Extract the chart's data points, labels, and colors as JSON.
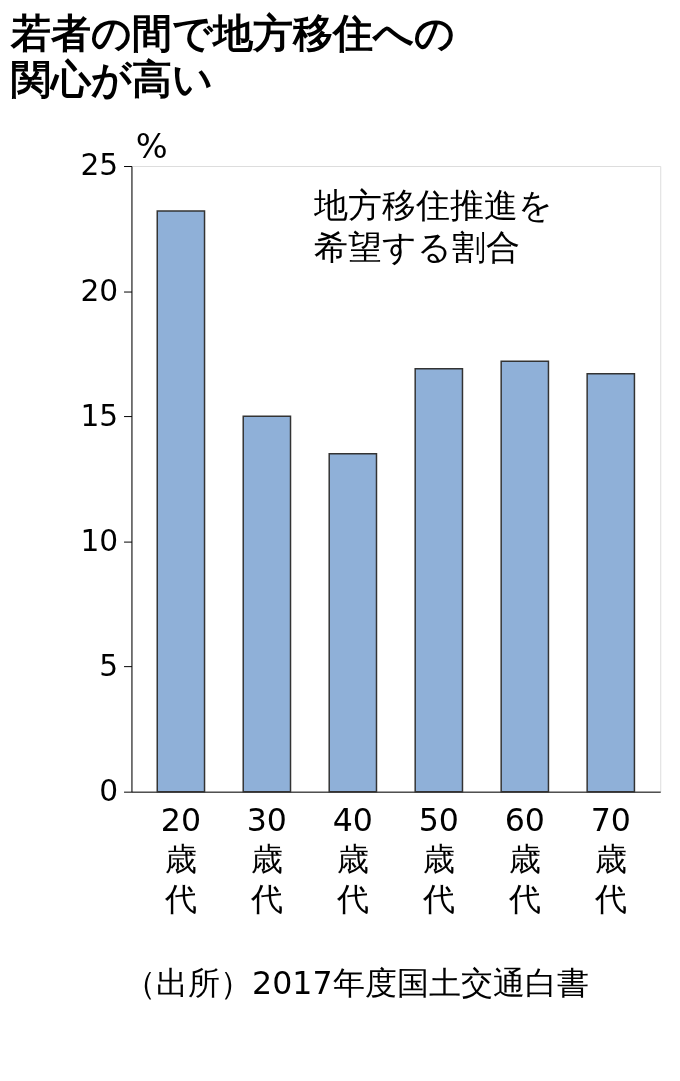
{
  "chart_data": {
    "type": "bar",
    "title": "若者の間で地方移住への関心が高い",
    "ylabel": "%",
    "categories": [
      "20歳代",
      "30歳代",
      "40歳代",
      "50歳代",
      "60歳代",
      "70歳代"
    ],
    "values": [
      23.2,
      15.0,
      13.5,
      16.9,
      17.2,
      16.7
    ],
    "color": "#8fb0d8",
    "ylim": [
      0,
      25
    ],
    "yticks": [
      0,
      5,
      10,
      15,
      20,
      25
    ],
    "grid": false,
    "annotations": [
      "地方移住推進を希望する割合",
      "（出所）2017年度国土交通白書"
    ]
  }
}
